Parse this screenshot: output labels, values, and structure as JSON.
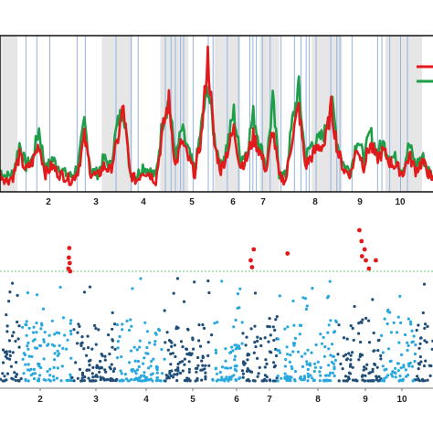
{
  "chart_data": [
    {
      "type": "line",
      "title": "",
      "xlabel": "",
      "ylabel": "",
      "ylim": [
        0,
        1
      ],
      "grid": false,
      "legend": "top-right",
      "chromosome_labels": [
        "2",
        "3",
        "4",
        "5",
        "6",
        "7",
        "8",
        "9",
        "10"
      ],
      "chromosome_bounds": [
        0,
        2.5,
        5.5,
        13.5,
        22.6,
        31.7,
        38.3,
        41.3,
        52.1,
        58.5,
        66.0,
        72.3,
        80.0
      ],
      "shaded_bands": [
        [
          0,
          4.0
        ],
        [
          23.5,
          30.5
        ],
        [
          37.0,
          43.5
        ],
        [
          49.5,
          55.5
        ],
        [
          60.0,
          64.5
        ],
        [
          72.0,
          79.0
        ],
        [
          89.0,
          97.5
        ]
      ],
      "blue_lines": [
        6,
        8.5,
        11.5,
        17.8,
        19.7,
        26.8,
        30.3,
        31.9,
        38.2,
        39.5,
        40.5,
        41.7,
        42.4,
        44.6,
        48.1,
        49.2,
        52.5,
        55.1,
        57.7,
        58.4,
        59.2,
        60.6,
        62.4,
        64.9,
        68.0,
        69.5,
        70.7,
        71.4,
        73.0,
        76.4,
        77.8,
        78.5,
        81.3,
        87.2,
        88.2,
        90.0,
        92.5,
        94.1
      ],
      "series": [
        {
          "color": "#e31a1c",
          "x": [
            0,
            1.5,
            3,
            4.5,
            6,
            7.5,
            9,
            10.5,
            12,
            13.5,
            15,
            16.5,
            18,
            19.5,
            21,
            22.5,
            24,
            25.5,
            27,
            28.5,
            30,
            31.5,
            33,
            34.5,
            36,
            37.5,
            39,
            40.5,
            42,
            43.5,
            45,
            46.5,
            48,
            49.5,
            51,
            52.5,
            54,
            55.5,
            57,
            58.5,
            60,
            61.5,
            63,
            64.5,
            66,
            67.5,
            69,
            70.5,
            72,
            73.5,
            75,
            76.5,
            78,
            79.5,
            81,
            82.5,
            84,
            85.5,
            87,
            88.5,
            90,
            91.5,
            93,
            94.5,
            96,
            97.5,
            99,
            100
          ],
          "y": [
            0.1,
            0.05,
            0.08,
            0.22,
            0.12,
            0.18,
            0.3,
            0.1,
            0.15,
            0.1,
            0.08,
            0.05,
            0.12,
            0.35,
            0.1,
            0.08,
            0.15,
            0.12,
            0.3,
            0.55,
            0.1,
            0.05,
            0.12,
            0.1,
            0.05,
            0.38,
            0.6,
            0.15,
            0.32,
            0.2,
            0.1,
            0.35,
            0.9,
            0.3,
            0.12,
            0.25,
            0.4,
            0.15,
            0.2,
            0.35,
            0.25,
            0.12,
            0.4,
            0.08,
            0.05,
            0.35,
            0.55,
            0.15,
            0.22,
            0.28,
            0.3,
            0.55,
            0.25,
            0.12,
            0.1,
            0.28,
            0.15,
            0.3,
            0.2,
            0.25,
            0.18,
            0.15,
            0.1,
            0.22,
            0.12,
            0.18,
            0.1,
            0.05
          ]
        },
        {
          "color": "#1f9e4a",
          "x": [
            0,
            1.5,
            3,
            4.5,
            6,
            7.5,
            9,
            10.5,
            12,
            13.5,
            15,
            16.5,
            18,
            19.5,
            21,
            22.5,
            24,
            25.5,
            27,
            28.5,
            30,
            31.5,
            33,
            34.5,
            36,
            37.5,
            39,
            40.5,
            42,
            43.5,
            45,
            46.5,
            48,
            49.5,
            51,
            52.5,
            54,
            55.5,
            57,
            58.5,
            60,
            61.5,
            63,
            64.5,
            66,
            67.5,
            69,
            70.5,
            72,
            73.5,
            75,
            76.5,
            78,
            79.5,
            81,
            82.5,
            84,
            85.5,
            87,
            88.5,
            90,
            91.5,
            93,
            94.5,
            96,
            97.5,
            99,
            100
          ],
          "y": [
            0.12,
            0.08,
            0.1,
            0.3,
            0.15,
            0.2,
            0.4,
            0.12,
            0.2,
            0.15,
            0.1,
            0.08,
            0.15,
            0.45,
            0.12,
            0.1,
            0.2,
            0.15,
            0.42,
            0.55,
            0.12,
            0.08,
            0.15,
            0.12,
            0.08,
            0.45,
            0.6,
            0.2,
            0.4,
            0.25,
            0.12,
            0.42,
            0.7,
            0.35,
            0.15,
            0.3,
            0.52,
            0.2,
            0.25,
            0.5,
            0.3,
            0.15,
            0.6,
            0.1,
            0.08,
            0.45,
            0.68,
            0.2,
            0.3,
            0.32,
            0.38,
            0.6,
            0.3,
            0.15,
            0.12,
            0.35,
            0.2,
            0.38,
            0.25,
            0.3,
            0.22,
            0.2,
            0.12,
            0.3,
            0.15,
            0.22,
            0.12,
            0.08
          ]
        }
      ]
    },
    {
      "type": "scatter",
      "title": "",
      "xlabel": "",
      "ylabel": "",
      "grid": false,
      "chromosome_labels": [
        "2",
        "3",
        "4",
        "5",
        "6",
        "7",
        "8",
        "9",
        "10"
      ],
      "threshold": 0.82,
      "colors": {
        "dark": "#1f4e79",
        "light": "#29a8e0",
        "significant": "#e31a1c",
        "threshold": "#2db34a"
      },
      "significant_points": [
        {
          "x": 16.0,
          "y": 0.99
        },
        {
          "x": 15.9,
          "y": 0.92
        },
        {
          "x": 16.1,
          "y": 0.88
        },
        {
          "x": 15.8,
          "y": 0.84
        },
        {
          "x": 16.2,
          "y": 0.82
        },
        {
          "x": 58.6,
          "y": 0.98
        },
        {
          "x": 57.9,
          "y": 0.9
        },
        {
          "x": 58.2,
          "y": 0.85
        },
        {
          "x": 66.4,
          "y": 0.95
        },
        {
          "x": 83.0,
          "y": 1.12
        },
        {
          "x": 83.5,
          "y": 1.04
        },
        {
          "x": 84.2,
          "y": 0.98
        },
        {
          "x": 83.6,
          "y": 0.93
        },
        {
          "x": 84.5,
          "y": 0.9
        },
        {
          "x": 85.2,
          "y": 0.84
        },
        {
          "x": 86.8,
          "y": 0.9
        }
      ]
    }
  ]
}
